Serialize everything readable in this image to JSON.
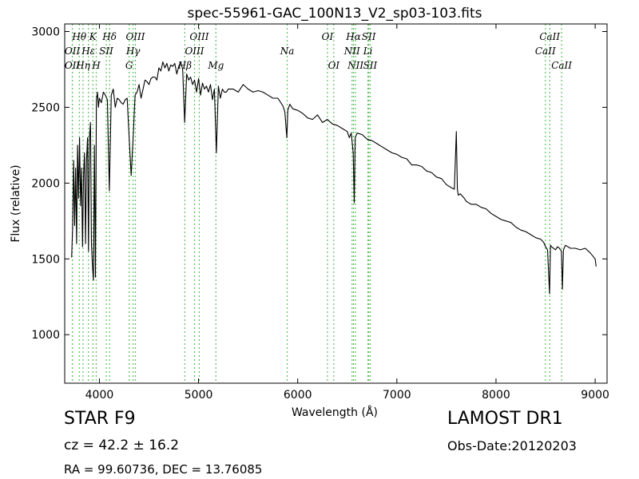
{
  "chart_data": {
    "type": "line",
    "title": "spec-55961-GAC_100N13_V2_sp03-103.fits",
    "xlabel": "Wavelength (Å)",
    "ylabel": "Flux (relative)",
    "xlim": [
      3650,
      9120
    ],
    "ylim": [
      680,
      3050
    ],
    "xticks": [
      4000,
      5000,
      6000,
      7000,
      8000,
      9000
    ],
    "yticks": [
      1000,
      1500,
      2000,
      2500,
      3000
    ],
    "grid": false,
    "series": [
      {
        "x": [
          3720,
          3730,
          3740,
          3750,
          3760,
          3770,
          3780,
          3790,
          3800,
          3810,
          3820,
          3830,
          3840,
          3850,
          3860,
          3870,
          3880,
          3890,
          3900,
          3910,
          3920,
          3930,
          3940,
          3950,
          3960,
          3970,
          3980,
          3990,
          4000,
          4020,
          4040,
          4060,
          4080,
          4100,
          4120,
          4140,
          4160,
          4180,
          4200,
          4220,
          4240,
          4260,
          4280,
          4300,
          4320,
          4340,
          4360,
          4380,
          4400,
          4420,
          4440,
          4460,
          4480,
          4500,
          4520,
          4540,
          4560,
          4580,
          4600,
          4620,
          4640,
          4660,
          4680,
          4700,
          4720,
          4740,
          4760,
          4780,
          4800,
          4820,
          4840,
          4860,
          4880,
          4900,
          4920,
          4940,
          4960,
          4980,
          5000,
          5020,
          5040,
          5060,
          5080,
          5100,
          5120,
          5140,
          5160,
          5180,
          5200,
          5220,
          5240,
          5260,
          5280,
          5300,
          5350,
          5400,
          5450,
          5500,
          5550,
          5600,
          5650,
          5700,
          5750,
          5800,
          5850,
          5870,
          5890,
          5900,
          5920,
          5950,
          6000,
          6050,
          6100,
          6150,
          6200,
          6250,
          6300,
          6350,
          6400,
          6450,
          6500,
          6520,
          6540,
          6560,
          6570,
          6580,
          6600,
          6650,
          6700,
          6750,
          6800,
          6850,
          6900,
          6950,
          7000,
          7050,
          7100,
          7150,
          7200,
          7250,
          7300,
          7350,
          7400,
          7450,
          7500,
          7550,
          7580,
          7600,
          7610,
          7620,
          7640,
          7680,
          7700,
          7750,
          7800,
          7850,
          7900,
          7950,
          8000,
          8050,
          8100,
          8150,
          8200,
          8250,
          8300,
          8350,
          8400,
          8450,
          8480,
          8500,
          8520,
          8540,
          8550,
          8560,
          8600,
          8620,
          8640,
          8660,
          8670,
          8680,
          8700,
          8750,
          8800,
          8850,
          8900,
          8950,
          9000,
          9010
        ],
        "y": [
          1510,
          1700,
          2150,
          1720,
          2100,
          1600,
          2250,
          1900,
          2300,
          1850,
          2100,
          1580,
          2050,
          2200,
          1600,
          2150,
          2300,
          1550,
          2300,
          2400,
          1600,
          1450,
          1360,
          2250,
          1380,
          2550,
          2600,
          2500,
          2560,
          2530,
          2600,
          2580,
          2550,
          1950,
          2580,
          2620,
          2500,
          2560,
          2550,
          2530,
          2520,
          2550,
          2560,
          2300,
          2050,
          2300,
          2580,
          2600,
          2650,
          2560,
          2620,
          2680,
          2670,
          2650,
          2690,
          2700,
          2700,
          2680,
          2760,
          2740,
          2800,
          2760,
          2790,
          2740,
          2780,
          2770,
          2790,
          2720,
          2770,
          2800,
          2750,
          2400,
          2720,
          2680,
          2700,
          2650,
          2680,
          2600,
          2690,
          2580,
          2660,
          2620,
          2640,
          2600,
          2650,
          2550,
          2620,
          2200,
          2640,
          2560,
          2620,
          2600,
          2600,
          2620,
          2620,
          2600,
          2650,
          2620,
          2600,
          2610,
          2600,
          2580,
          2560,
          2560,
          2510,
          2470,
          2300,
          2480,
          2520,
          2490,
          2480,
          2460,
          2430,
          2420,
          2450,
          2400,
          2420,
          2390,
          2380,
          2360,
          2340,
          2300,
          2330,
          2200,
          1870,
          2300,
          2330,
          2320,
          2290,
          2280,
          2260,
          2240,
          2220,
          2200,
          2190,
          2170,
          2160,
          2120,
          2120,
          2110,
          2080,
          2070,
          2040,
          2030,
          1990,
          1970,
          1960,
          2340,
          1960,
          1920,
          1930,
          1900,
          1880,
          1860,
          1860,
          1840,
          1830,
          1800,
          1780,
          1760,
          1750,
          1740,
          1710,
          1690,
          1680,
          1660,
          1640,
          1630,
          1610,
          1580,
          1560,
          1270,
          1590,
          1580,
          1560,
          1580,
          1570,
          1550,
          1300,
          1560,
          1590,
          1570,
          1570,
          1560,
          1570,
          1540,
          1500,
          1450
        ]
      }
    ],
    "spectral_lines": [
      {
        "label": "OII",
        "x": 3727,
        "row": 2
      },
      {
        "label": "OII",
        "x": 3727,
        "row": 3
      },
      {
        "label": "Hθ",
        "x": 3797,
        "row": 1
      },
      {
        "label": "Hη",
        "x": 3835,
        "row": 3
      },
      {
        "label": "Hε",
        "x": 3889,
        "row": 2
      },
      {
        "label": "K",
        "x": 3934,
        "row": 1
      },
      {
        "label": "H",
        "x": 3968,
        "row": 3
      },
      {
        "label": "SII",
        "x": 4069,
        "row": 2
      },
      {
        "label": "Hδ",
        "x": 4102,
        "row": 1
      },
      {
        "label": "G",
        "x": 4300,
        "row": 3
      },
      {
        "label": "Hγ",
        "x": 4340,
        "row": 2
      },
      {
        "label": "OIII",
        "x": 4363,
        "row": 1
      },
      {
        "label": "Hβ",
        "x": 4861,
        "row": 3
      },
      {
        "label": "OIII",
        "x": 4959,
        "row": 2
      },
      {
        "label": "OIII",
        "x": 5007,
        "row": 1
      },
      {
        "label": "Mg",
        "x": 5175,
        "row": 3
      },
      {
        "label": "Na",
        "x": 5894,
        "row": 2
      },
      {
        "label": "OI",
        "x": 6300,
        "row": 1
      },
      {
        "label": "OI",
        "x": 6364,
        "row": 3
      },
      {
        "label": "NII",
        "x": 6548,
        "row": 2
      },
      {
        "label": "NII",
        "x": 6583,
        "row": 3
      },
      {
        "label": "Hα",
        "x": 6563,
        "row": 1
      },
      {
        "label": "SII",
        "x": 6716,
        "row": 1
      },
      {
        "label": "SII",
        "x": 6731,
        "row": 3
      },
      {
        "label": "Li",
        "x": 6708,
        "row": 2
      },
      {
        "label": "CaII",
        "x": 8498,
        "row": 2
      },
      {
        "label": "CaII",
        "x": 8542,
        "row": 1
      },
      {
        "label": "CaII",
        "x": 8662,
        "row": 3
      }
    ],
    "line_color": "#000000",
    "marker_color": "#5fbf5f"
  },
  "info": {
    "class_label": "STAR   F9",
    "cz_label": "cz = 42.2 ± 16.2",
    "radec_label": "RA = 99.60736, DEC = 13.76085",
    "survey_label": "LAMOST DR1",
    "obsdate_label": "Obs-Date:20120203"
  }
}
